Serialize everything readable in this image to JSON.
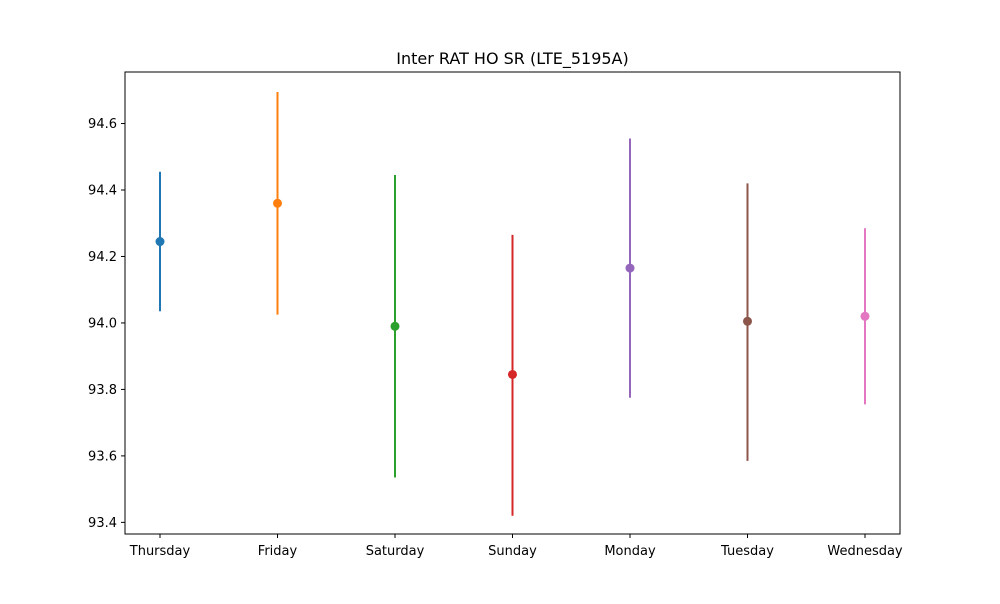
{
  "chart_data": {
    "type": "errorbar",
    "title": "Inter RAT HO SR (LTE_5195A)",
    "xlabel": "",
    "ylabel": "",
    "categories": [
      "Thursday",
      "Friday",
      "Saturday",
      "Sunday",
      "Monday",
      "Tuesday",
      "Wednesday"
    ],
    "points": [
      {
        "category": "Thursday",
        "mean": 94.245,
        "low": 94.035,
        "high": 94.455,
        "color": "#1f77b4"
      },
      {
        "category": "Friday",
        "mean": 94.36,
        "low": 94.025,
        "high": 94.695,
        "color": "#ff7f0e"
      },
      {
        "category": "Saturday",
        "mean": 93.99,
        "low": 93.535,
        "high": 94.445,
        "color": "#2ca02c"
      },
      {
        "category": "Sunday",
        "mean": 93.845,
        "low": 93.42,
        "high": 94.265,
        "color": "#d62728"
      },
      {
        "category": "Monday",
        "mean": 94.165,
        "low": 93.775,
        "high": 94.555,
        "color": "#9467bd"
      },
      {
        "category": "Tuesday",
        "mean": 94.005,
        "low": 93.585,
        "high": 94.42,
        "color": "#8c564b"
      },
      {
        "category": "Wednesday",
        "mean": 94.02,
        "low": 93.755,
        "high": 94.285,
        "color": "#e377c2"
      }
    ],
    "ylim": [
      93.365,
      94.755
    ],
    "yticks": [
      93.4,
      93.6,
      93.8,
      94.0,
      94.2,
      94.4,
      94.6
    ],
    "ytick_labels": [
      "93.4",
      "93.6",
      "93.8",
      "94.0",
      "94.2",
      "94.4",
      "94.6"
    ],
    "grid": false,
    "legend": "none"
  }
}
